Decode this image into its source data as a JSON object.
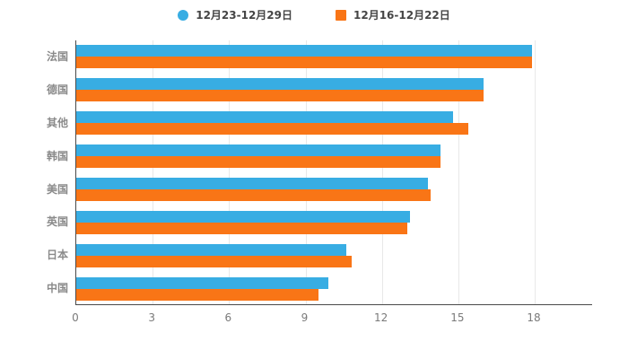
{
  "legend": {
    "items": [
      {
        "label": "12月23-12月29日",
        "marker": "circle"
      },
      {
        "label": "12月16-12月22日",
        "marker": "square"
      }
    ]
  },
  "chart_data": {
    "type": "bar",
    "orientation": "horizontal",
    "title": "",
    "xlabel": "",
    "ylabel": "",
    "categories": [
      "法国",
      "德国",
      "其他",
      "韩国",
      "美国",
      "英国",
      "日本",
      "中国"
    ],
    "series": [
      {
        "name": "12月23-12月29日",
        "color": "#38ADE3",
        "values": [
          17.9,
          16.0,
          14.8,
          14.3,
          13.8,
          13.1,
          10.6,
          9.9
        ]
      },
      {
        "name": "12月16-12月22日",
        "color": "#F97516",
        "values": [
          17.9,
          16.0,
          15.4,
          14.3,
          13.9,
          13.0,
          10.8,
          9.5
        ]
      }
    ],
    "xticks": [
      0,
      3,
      6,
      9,
      12,
      15,
      18
    ],
    "xlim": [
      0,
      18
    ],
    "grid": true,
    "legend_position": "top",
    "colors": {
      "series1": "#38ADE3",
      "series2": "#F97516",
      "axis": "#4a4a4a",
      "gridline": "#e8e8e8"
    }
  }
}
